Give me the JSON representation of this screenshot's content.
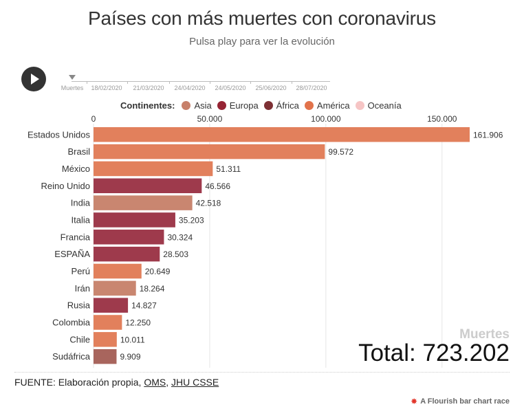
{
  "title": "Países con más muertes con coronavirus",
  "subtitle": "Pulsa play para ver la evolución",
  "timeline": {
    "start_label": "Muertes",
    "dates": [
      "18/02/2020",
      "21/03/2020",
      "24/04/2020",
      "24/05/2020",
      "25/06/2020",
      "28/07/2020"
    ]
  },
  "legend": {
    "title": "Continentes:",
    "items": [
      {
        "label": "Asia",
        "color": "#c7806a"
      },
      {
        "label": "Europa",
        "color": "#962434"
      },
      {
        "label": "África",
        "color": "#7d3034"
      },
      {
        "label": "América",
        "color": "#e2734b"
      },
      {
        "label": "Oceanía",
        "color": "#f6c5c5"
      }
    ]
  },
  "chart_data": {
    "type": "bar",
    "orientation": "horizontal",
    "xlim": [
      0,
      170000
    ],
    "xticks": [
      0,
      50000,
      100000,
      150000
    ],
    "xtick_labels": [
      "0",
      "50.000",
      "100.000",
      "150.000"
    ],
    "grid": true,
    "bars": [
      {
        "label": "Estados Unidos",
        "value": 161906,
        "value_label": "161.906",
        "color": "#e2805c"
      },
      {
        "label": "Brasil",
        "value": 99572,
        "value_label": "99.572",
        "color": "#e2805c"
      },
      {
        "label": "México",
        "value": 51311,
        "value_label": "51.311",
        "color": "#e2805c"
      },
      {
        "label": "Reino Unido",
        "value": 46566,
        "value_label": "46.566",
        "color": "#9e3a4c"
      },
      {
        "label": "India",
        "value": 42518,
        "value_label": "42.518",
        "color": "#c98670"
      },
      {
        "label": "Italia",
        "value": 35203,
        "value_label": "35.203",
        "color": "#9e3a4c"
      },
      {
        "label": "Francia",
        "value": 30324,
        "value_label": "30.324",
        "color": "#9e3a4c"
      },
      {
        "label": "ESPAÑA",
        "value": 28503,
        "value_label": "28.503",
        "color": "#9e3a4c"
      },
      {
        "label": "Perú",
        "value": 20649,
        "value_label": "20.649",
        "color": "#e2805c"
      },
      {
        "label": "Irán",
        "value": 18264,
        "value_label": "18.264",
        "color": "#c98670"
      },
      {
        "label": "Rusia",
        "value": 14827,
        "value_label": "14.827",
        "color": "#9e3a4c"
      },
      {
        "label": "Colombia",
        "value": 12250,
        "value_label": "12.250",
        "color": "#e2805c"
      },
      {
        "label": "Chile",
        "value": 10011,
        "value_label": "10.011",
        "color": "#e2805c"
      },
      {
        "label": "Sudáfrica",
        "value": 9909,
        "value_label": "9.909",
        "color": "#a8655d"
      }
    ]
  },
  "total": {
    "label": "Muertes",
    "value_text": "Total: 723.202"
  },
  "source": {
    "prefix": "FUENTE: Elaboración propia, ",
    "link1": "OMS",
    "sep": ", ",
    "link2": "JHU CSSE"
  },
  "credit": "A Flourish bar chart race"
}
